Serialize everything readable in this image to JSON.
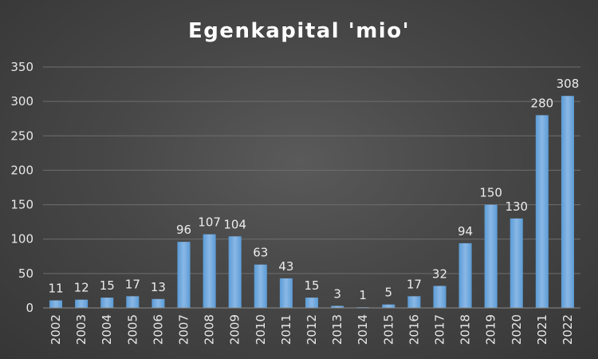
{
  "chart_data": {
    "type": "bar",
    "title": "Egenkapital 'mio'",
    "xlabel": "",
    "ylabel": "",
    "categories": [
      "2002",
      "2003",
      "2004",
      "2005",
      "2006",
      "2007",
      "2008",
      "2009",
      "2010",
      "2011",
      "2012",
      "2013",
      "2014",
      "2015",
      "2016",
      "2017",
      "2018",
      "2019",
      "2020",
      "2021",
      "2022"
    ],
    "values": [
      11,
      12,
      15,
      17,
      13,
      96,
      107,
      104,
      63,
      43,
      15,
      3,
      1,
      5,
      17,
      32,
      94,
      150,
      130,
      280,
      308
    ],
    "ylim": [
      0,
      350
    ],
    "yticks": [
      0,
      50,
      100,
      150,
      200,
      250,
      300,
      350
    ],
    "grid": true,
    "legend": "none",
    "bar_color": "#5b9bd5",
    "bar_color_light": "#8ab8e6"
  }
}
